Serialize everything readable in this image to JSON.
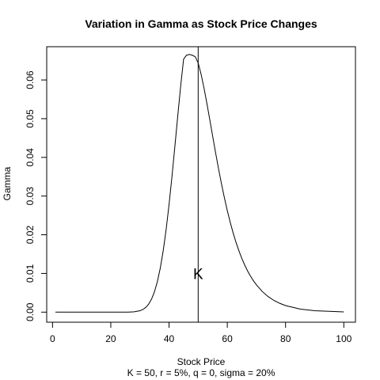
{
  "chart_data": {
    "type": "line",
    "title": "Variation in Gamma as Stock Price Changes",
    "xlabel": "Stock Price",
    "subtitle": "K = 50, r = 5%, q = 0, sigma = 20%",
    "ylabel": "Gamma",
    "xlim": [
      -2,
      104
    ],
    "ylim": [
      -0.0026,
      0.0686
    ],
    "x_ticks": [
      0,
      20,
      40,
      60,
      80,
      100
    ],
    "y_ticks": [
      0.0,
      0.01,
      0.02,
      0.03,
      0.04,
      0.05,
      0.06
    ],
    "y_tick_labels": [
      "0.00",
      "0.01",
      "0.02",
      "0.03",
      "0.04",
      "0.05",
      "0.06"
    ],
    "grid": false,
    "legend": "none",
    "series": [
      {
        "x": [
          1,
          26,
          28,
          30,
          31,
          32,
          33,
          34,
          35,
          36,
          37,
          38,
          39,
          40,
          41,
          42,
          43,
          44,
          45,
          46,
          47,
          48,
          49,
          50,
          51,
          52,
          53,
          54,
          55,
          56,
          57,
          58,
          59,
          60,
          61,
          62,
          63,
          64,
          65,
          66,
          67,
          68,
          69,
          70,
          72,
          74,
          76,
          78,
          80,
          85,
          90,
          100
        ],
        "values": [
          0.0,
          2e-05,
          9e-05,
          0.00036,
          0.00068,
          0.00122,
          0.00207,
          0.00338,
          0.00528,
          0.00792,
          0.01142,
          0.01589,
          0.02136,
          0.02779,
          0.03502,
          0.04281,
          0.05078,
          0.0585,
          0.0654,
          0.0664,
          0.0666,
          0.0664,
          0.066,
          0.0644,
          0.0615,
          0.05792,
          0.05392,
          0.04968,
          0.04537,
          0.04112,
          0.03703,
          0.03317,
          0.02957,
          0.02625,
          0.02322,
          0.02048,
          0.01802,
          0.01582,
          0.01386,
          0.01213,
          0.0106,
          0.00926,
          0.00808,
          0.00705,
          0.00534,
          0.00403,
          0.00303,
          0.00228,
          0.0017,
          0.0008,
          0.00037,
          7e-05
        ]
      }
    ],
    "vline": {
      "x": 50
    },
    "annotations": [
      {
        "text": "K",
        "x": 50,
        "y": 0.0097
      }
    ]
  }
}
